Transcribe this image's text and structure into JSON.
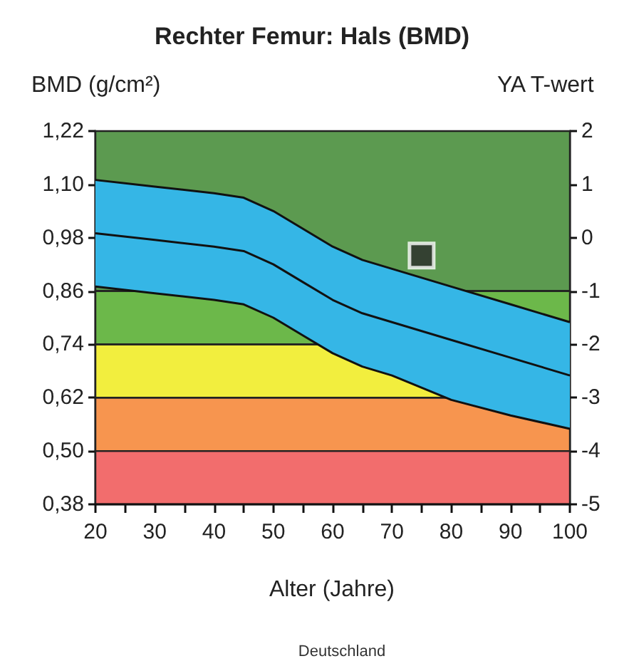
{
  "chart_data": {
    "type": "line",
    "title": "Rechter Femur: Hals (BMD)",
    "xlabel": "Alter (Jahre)",
    "ylabel": "BMD (g/cm²)",
    "y2label": "YA T-wert",
    "annotations": [
      "Deutschland"
    ],
    "xlim": [
      20,
      100
    ],
    "xticks": [
      20,
      {
        "value": 25,
        "label": null
      },
      30,
      {
        "value": 35,
        "label": null
      },
      40,
      {
        "value": 45,
        "label": null
      },
      50,
      {
        "value": 55,
        "label": null
      },
      60,
      {
        "value": 65,
        "label": null
      },
      70,
      {
        "value": 75,
        "label": null
      },
      80,
      {
        "value": 85,
        "label": null
      },
      90,
      {
        "value": 95,
        "label": null
      },
      100
    ],
    "ylim": [
      0.38,
      1.22
    ],
    "yticks": [
      {
        "value": 0.38,
        "label": "0,38"
      },
      {
        "value": 0.5,
        "label": "0,50"
      },
      {
        "value": 0.62,
        "label": "0,62"
      },
      {
        "value": 0.74,
        "label": "0,74"
      },
      {
        "value": 0.86,
        "label": "0,86"
      },
      {
        "value": 0.98,
        "label": "0,98"
      },
      {
        "value": 1.1,
        "label": "1,10"
      },
      {
        "value": 1.22,
        "label": "1,22"
      }
    ],
    "y2lim": [
      -5,
      2
    ],
    "y2ticks": [
      -5,
      -4,
      -3,
      -2,
      -1,
      0,
      1,
      2
    ],
    "bands": [
      {
        "axis": "y",
        "from": 0.38,
        "to": 0.5,
        "color": "#f26d6d"
      },
      {
        "axis": "y",
        "from": 0.5,
        "to": 0.62,
        "color": "#f7954f"
      },
      {
        "axis": "y",
        "from": 0.62,
        "to": 0.74,
        "color": "#f2ee3e"
      },
      {
        "axis": "y",
        "from": 0.74,
        "to": 0.86,
        "color": "#6cb84a"
      },
      {
        "axis": "y",
        "from": 0.86,
        "to": 1.22,
        "color": "#5c9a50"
      }
    ],
    "series": [
      {
        "color": "#111111",
        "marker": "none",
        "x": [
          20,
          30,
          40,
          45,
          50,
          55,
          60,
          65,
          70,
          80,
          90,
          100
        ],
        "values": [
          0.99,
          0.975,
          0.96,
          0.95,
          0.92,
          0.88,
          0.84,
          0.81,
          0.79,
          0.75,
          0.71,
          0.67
        ],
        "lower": [
          0.87,
          0.855,
          0.84,
          0.83,
          0.8,
          0.76,
          0.72,
          0.69,
          0.67,
          0.615,
          0.58,
          0.55
        ],
        "upper": [
          1.11,
          1.095,
          1.08,
          1.07,
          1.04,
          1.0,
          0.96,
          0.93,
          0.91,
          0.87,
          0.83,
          0.79
        ]
      },
      {
        "type": "line",
        "color": "#111111",
        "marker": "none",
        "x": [
          20,
          30,
          40,
          45,
          50,
          55,
          60,
          65,
          70,
          80,
          90,
          100
        ],
        "values": [
          1.11,
          1.095,
          1.08,
          1.07,
          1.04,
          1.0,
          0.96,
          0.93,
          0.91,
          0.87,
          0.83,
          0.79
        ]
      },
      {
        "type": "line",
        "color": "#111111",
        "marker": "none",
        "x": [
          20,
          30,
          40,
          45,
          50,
          55,
          60,
          65,
          70,
          80,
          90,
          100
        ],
        "values": [
          0.87,
          0.855,
          0.84,
          0.83,
          0.8,
          0.76,
          0.72,
          0.69,
          0.67,
          0.615,
          0.58,
          0.55
        ]
      },
      {
        "type": "scatter",
        "color": "#2b2b2b",
        "marker": "square",
        "x": [
          75
        ],
        "values": [
          0.94
        ]
      }
    ],
    "grid": false
  }
}
